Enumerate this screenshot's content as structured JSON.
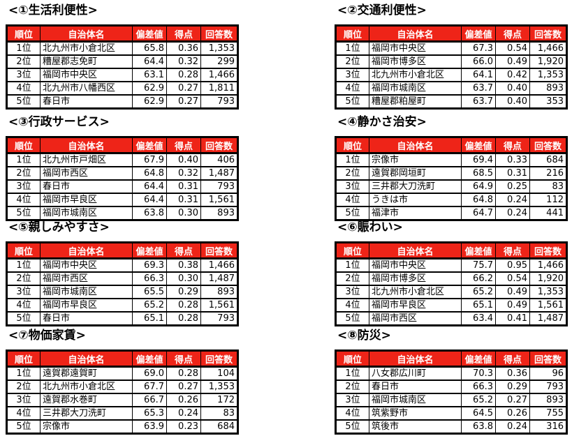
{
  "colors": {
    "header_bg": "#ee2418",
    "header_text": "#ffffff"
  },
  "headers": [
    "順位",
    "自治体名",
    "偏差値",
    "得点",
    "回答数"
  ],
  "tables": [
    {
      "title": "<①生活利便性>",
      "rows": [
        [
          "1位",
          "北九州市小倉北区",
          "65.8",
          "0.36",
          "1,353"
        ],
        [
          "2位",
          "糟屋郡志免町",
          "64.4",
          "0.32",
          "299"
        ],
        [
          "3位",
          "福岡市中央区",
          "63.1",
          "0.28",
          "1,466"
        ],
        [
          "4位",
          "北九州市八幡西区",
          "62.9",
          "0.27",
          "1,811"
        ],
        [
          "5位",
          "春日市",
          "62.9",
          "0.27",
          "793"
        ]
      ]
    },
    {
      "title": "<②交通利便性>",
      "rows": [
        [
          "1位",
          "福岡市中央区",
          "67.3",
          "0.54",
          "1,466"
        ],
        [
          "2位",
          "福岡市博多区",
          "66.0",
          "0.49",
          "1,920"
        ],
        [
          "3位",
          "北九州市小倉北区",
          "64.1",
          "0.42",
          "1,353"
        ],
        [
          "4位",
          "福岡市城南区",
          "63.7",
          "0.40",
          "893"
        ],
        [
          "5位",
          "糟屋郡粕屋町",
          "63.7",
          "0.40",
          "353"
        ]
      ]
    },
    {
      "title": "<③行政サービス>",
      "rows": [
        [
          "1位",
          "北九州市戸畑区",
          "67.9",
          "0.40",
          "406"
        ],
        [
          "2位",
          "福岡市西区",
          "64.8",
          "0.32",
          "1,487"
        ],
        [
          "3位",
          "春日市",
          "64.4",
          "0.31",
          "793"
        ],
        [
          "4位",
          "福岡市早良区",
          "64.4",
          "0.31",
          "1,561"
        ],
        [
          "5位",
          "福岡市城南区",
          "63.8",
          "0.30",
          "893"
        ]
      ]
    },
    {
      "title": "<④静かさ治安>",
      "rows": [
        [
          "1位",
          "宗像市",
          "69.4",
          "0.33",
          "684"
        ],
        [
          "2位",
          "遠賀郡岡垣町",
          "68.5",
          "0.31",
          "216"
        ],
        [
          "3位",
          "三井郡大刀洗町",
          "64.9",
          "0.25",
          "83"
        ],
        [
          "4位",
          "うきは市",
          "64.8",
          "0.24",
          "112"
        ],
        [
          "5位",
          "福津市",
          "64.7",
          "0.24",
          "441"
        ]
      ]
    },
    {
      "title": "<⑤親しみやすさ>",
      "rows": [
        [
          "1位",
          "福岡市中央区",
          "69.3",
          "0.38",
          "1,466"
        ],
        [
          "2位",
          "福岡市西区",
          "66.3",
          "0.30",
          "1,487"
        ],
        [
          "3位",
          "福岡市城南区",
          "65.5",
          "0.29",
          "893"
        ],
        [
          "4位",
          "福岡市早良区",
          "65.2",
          "0.28",
          "1,561"
        ],
        [
          "5位",
          "春日市",
          "65.1",
          "0.28",
          "793"
        ]
      ]
    },
    {
      "title": "<⑥賑わい>",
      "rows": [
        [
          "1位",
          "福岡市中央区",
          "75.7",
          "0.95",
          "1,466"
        ],
        [
          "2位",
          "福岡市博多区",
          "66.2",
          "0.54",
          "1,920"
        ],
        [
          "3位",
          "北九州市小倉北区",
          "65.2",
          "0.49",
          "1,353"
        ],
        [
          "4位",
          "福岡市早良区",
          "65.1",
          "0.49",
          "1,561"
        ],
        [
          "5位",
          "福岡市西区",
          "63.4",
          "0.41",
          "1,487"
        ]
      ]
    },
    {
      "title": "<⑦物価家賃>",
      "rows": [
        [
          "1位",
          "遠賀郡遠賀町",
          "69.0",
          "0.28",
          "104"
        ],
        [
          "2位",
          "北九州市小倉北区",
          "67.7",
          "0.27",
          "1,353"
        ],
        [
          "3位",
          "遠賀郡水巻町",
          "66.7",
          "0.26",
          "172"
        ],
        [
          "4位",
          "三井郡大刀洗町",
          "65.3",
          "0.24",
          "83"
        ],
        [
          "5位",
          "宗像市",
          "63.9",
          "0.23",
          "684"
        ]
      ]
    },
    {
      "title": "<⑧防災>",
      "rows": [
        [
          "1位",
          "八女郡広川町",
          "70.3",
          "0.36",
          "96"
        ],
        [
          "2位",
          "春日市",
          "66.3",
          "0.29",
          "793"
        ],
        [
          "3位",
          "福岡市城南区",
          "65.2",
          "0.27",
          "893"
        ],
        [
          "4位",
          "筑紫野市",
          "64.5",
          "0.26",
          "755"
        ],
        [
          "5位",
          "筑後市",
          "63.8",
          "0.24",
          "316"
        ]
      ]
    }
  ]
}
